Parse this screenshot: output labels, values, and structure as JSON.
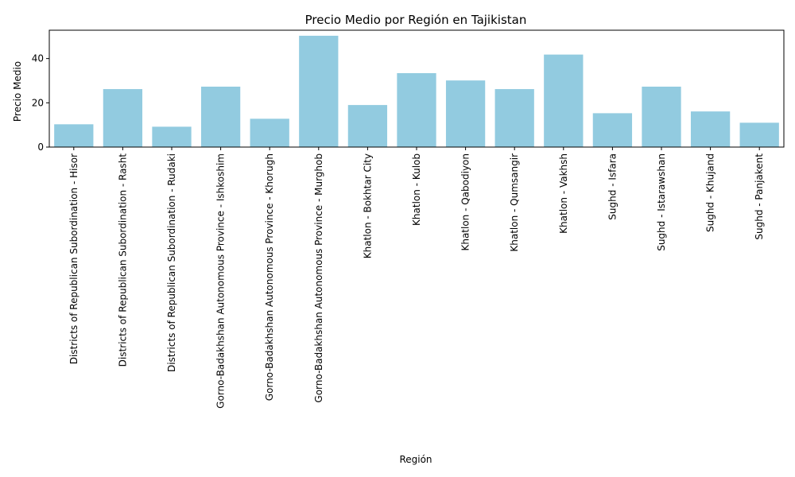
{
  "chart_data": {
    "type": "bar",
    "title": "Precio Medio por Región en Tajikistan",
    "xlabel": "Región",
    "ylabel": "Precio Medio",
    "categories": [
      "Districts of Republican Subordination - Hisor",
      "Districts of Republican Subordination - Rasht",
      "Districts of Republican Subordination - Rudaki",
      "Gorno-Badakhshan Autonomous Province - Ishkoshim",
      "Gorno-Badakhshan Autonomous Province - Khorugh",
      "Gorno-Badakhshan Autonomous Province - Murghob",
      "Khatlon - Bokhtar City",
      "Khatlon - Kulob",
      "Khatlon - Qabodiyon",
      "Khatlon - Qumsangir",
      "Khatlon - Vakhsh",
      "Sughd - Isfara",
      "Sughd - Istarawshan",
      "Sughd - Khujand",
      "Sughd - Panjakent"
    ],
    "values": [
      10.3,
      26.2,
      9.2,
      27.3,
      12.8,
      50.3,
      19.0,
      33.4,
      30.1,
      26.2,
      41.8,
      15.3,
      27.3,
      16.1,
      11.0
    ],
    "ylim": [
      0,
      52.8
    ],
    "yticks": [
      0,
      20,
      40
    ],
    "ytick_labels": [
      "0",
      "20",
      "40"
    ],
    "bar_color": "#92cbe0",
    "grid": false,
    "legend": "none"
  }
}
